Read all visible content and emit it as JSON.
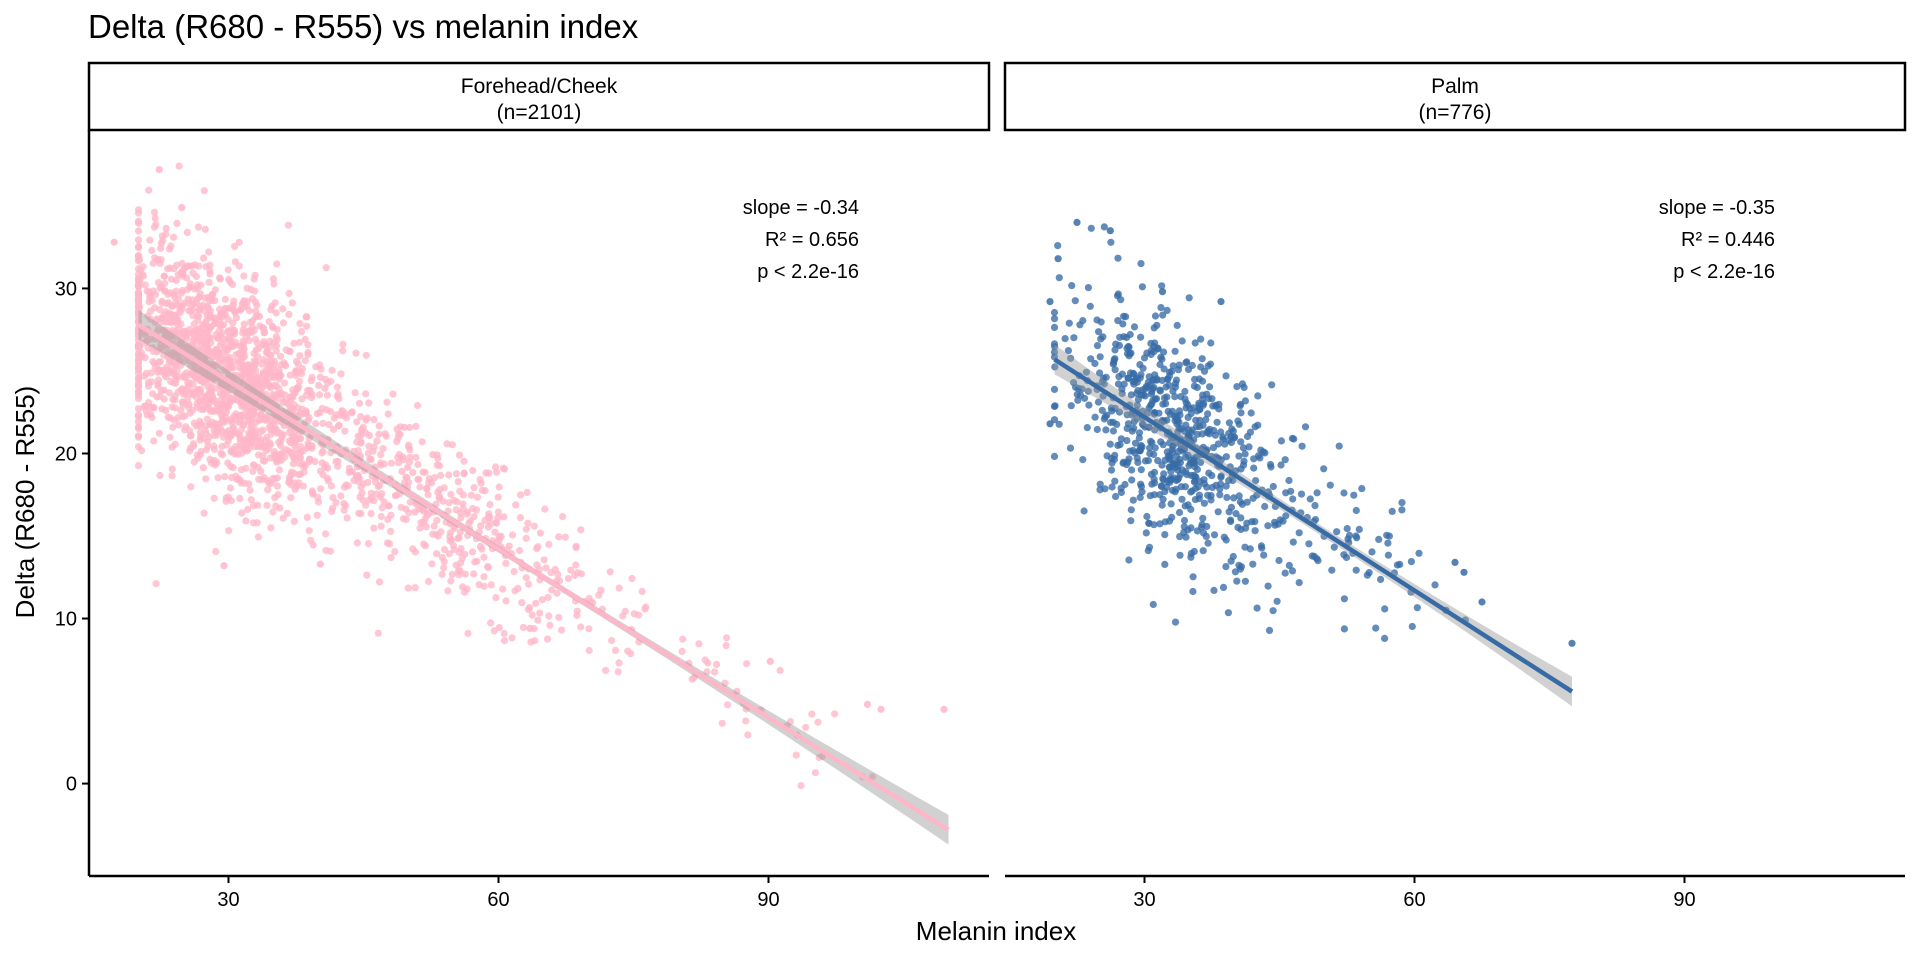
{
  "chart_data": {
    "type": "scatter",
    "title": "Delta (R680 - R555) vs melanin index",
    "xlabel": "Melanin index",
    "ylabel": "Delta (R680 - R555)",
    "xlim": [
      14.5,
      114.5
    ],
    "ylim": [
      -5.6,
      39.6
    ],
    "x_ticks": [
      30,
      60,
      90
    ],
    "y_ticks": [
      0,
      10,
      20,
      30
    ],
    "grid": false,
    "legend": "none",
    "panels": [
      {
        "name": "Forehead/Cheek",
        "strip_line1": "Forehead/Cheek",
        "strip_line2": "(n=2101)",
        "n": 2101,
        "color": "#ffb6c8",
        "x_range": [
          20,
          110
        ],
        "regression": {
          "intercept": 34.6,
          "slope": -0.34,
          "ci_halfwidth_ends": 0.9,
          "ci_halfwidth_mid": 0.2
        },
        "annotation": {
          "slope": "slope = -0.34",
          "r2": "R² = 0.656",
          "p": "p < 2.2e-16"
        },
        "cloud": [
          {
            "cx": 30,
            "cy": 24.5,
            "sx": 6.5,
            "sy": 3.2,
            "count": 1600
          },
          {
            "cx": 55,
            "cy": 16.5,
            "sx": 8,
            "sy": 2.2,
            "count": 420
          },
          {
            "cx": 85,
            "cy": 6.8,
            "sx": 8,
            "sy": 1.5,
            "count": 50
          }
        ],
        "highlight_points": [
          [
            22.3,
            37.2
          ],
          [
            17.3,
            32.8
          ],
          [
            24.8,
            34.9
          ],
          [
            29.5,
            13.2
          ],
          [
            40.2,
            13.3
          ],
          [
            63.5,
            9.4
          ],
          [
            90.2,
            7.4
          ],
          [
            101,
            4.8
          ],
          [
            102.5,
            4.5
          ],
          [
            109.5,
            4.5
          ]
        ]
      },
      {
        "name": "Palm",
        "strip_line1": "Palm",
        "strip_line2": "(n=776)",
        "n": 776,
        "color": "#376ba6",
        "x_range": [
          20,
          77.5
        ],
        "regression": {
          "intercept": 32.7,
          "slope": -0.35,
          "ci_halfwidth_ends": 0.9,
          "ci_halfwidth_mid": 0.3
        },
        "annotation": {
          "slope": "slope = -0.35",
          "r2": "R² = 0.446",
          "p": "p < 2.2e-16"
        },
        "cloud": [
          {
            "cx": 33,
            "cy": 21,
            "sx": 6,
            "sy": 3.3,
            "count": 700
          },
          {
            "cx": 52,
            "cy": 15.5,
            "sx": 5,
            "sy": 2.2,
            "count": 76
          }
        ],
        "highlight_points": [
          [
            22.5,
            34
          ],
          [
            26.2,
            33.5
          ],
          [
            20.4,
            31.8
          ],
          [
            19.5,
            29.2
          ],
          [
            32,
            29.8
          ],
          [
            38.5,
            29.2
          ],
          [
            19.5,
            21.8
          ],
          [
            63.5,
            10.5
          ],
          [
            67.5,
            11
          ],
          [
            77.5,
            8.5
          ],
          [
            64.5,
            13.4
          ],
          [
            65.5,
            12.8
          ]
        ]
      }
    ]
  }
}
